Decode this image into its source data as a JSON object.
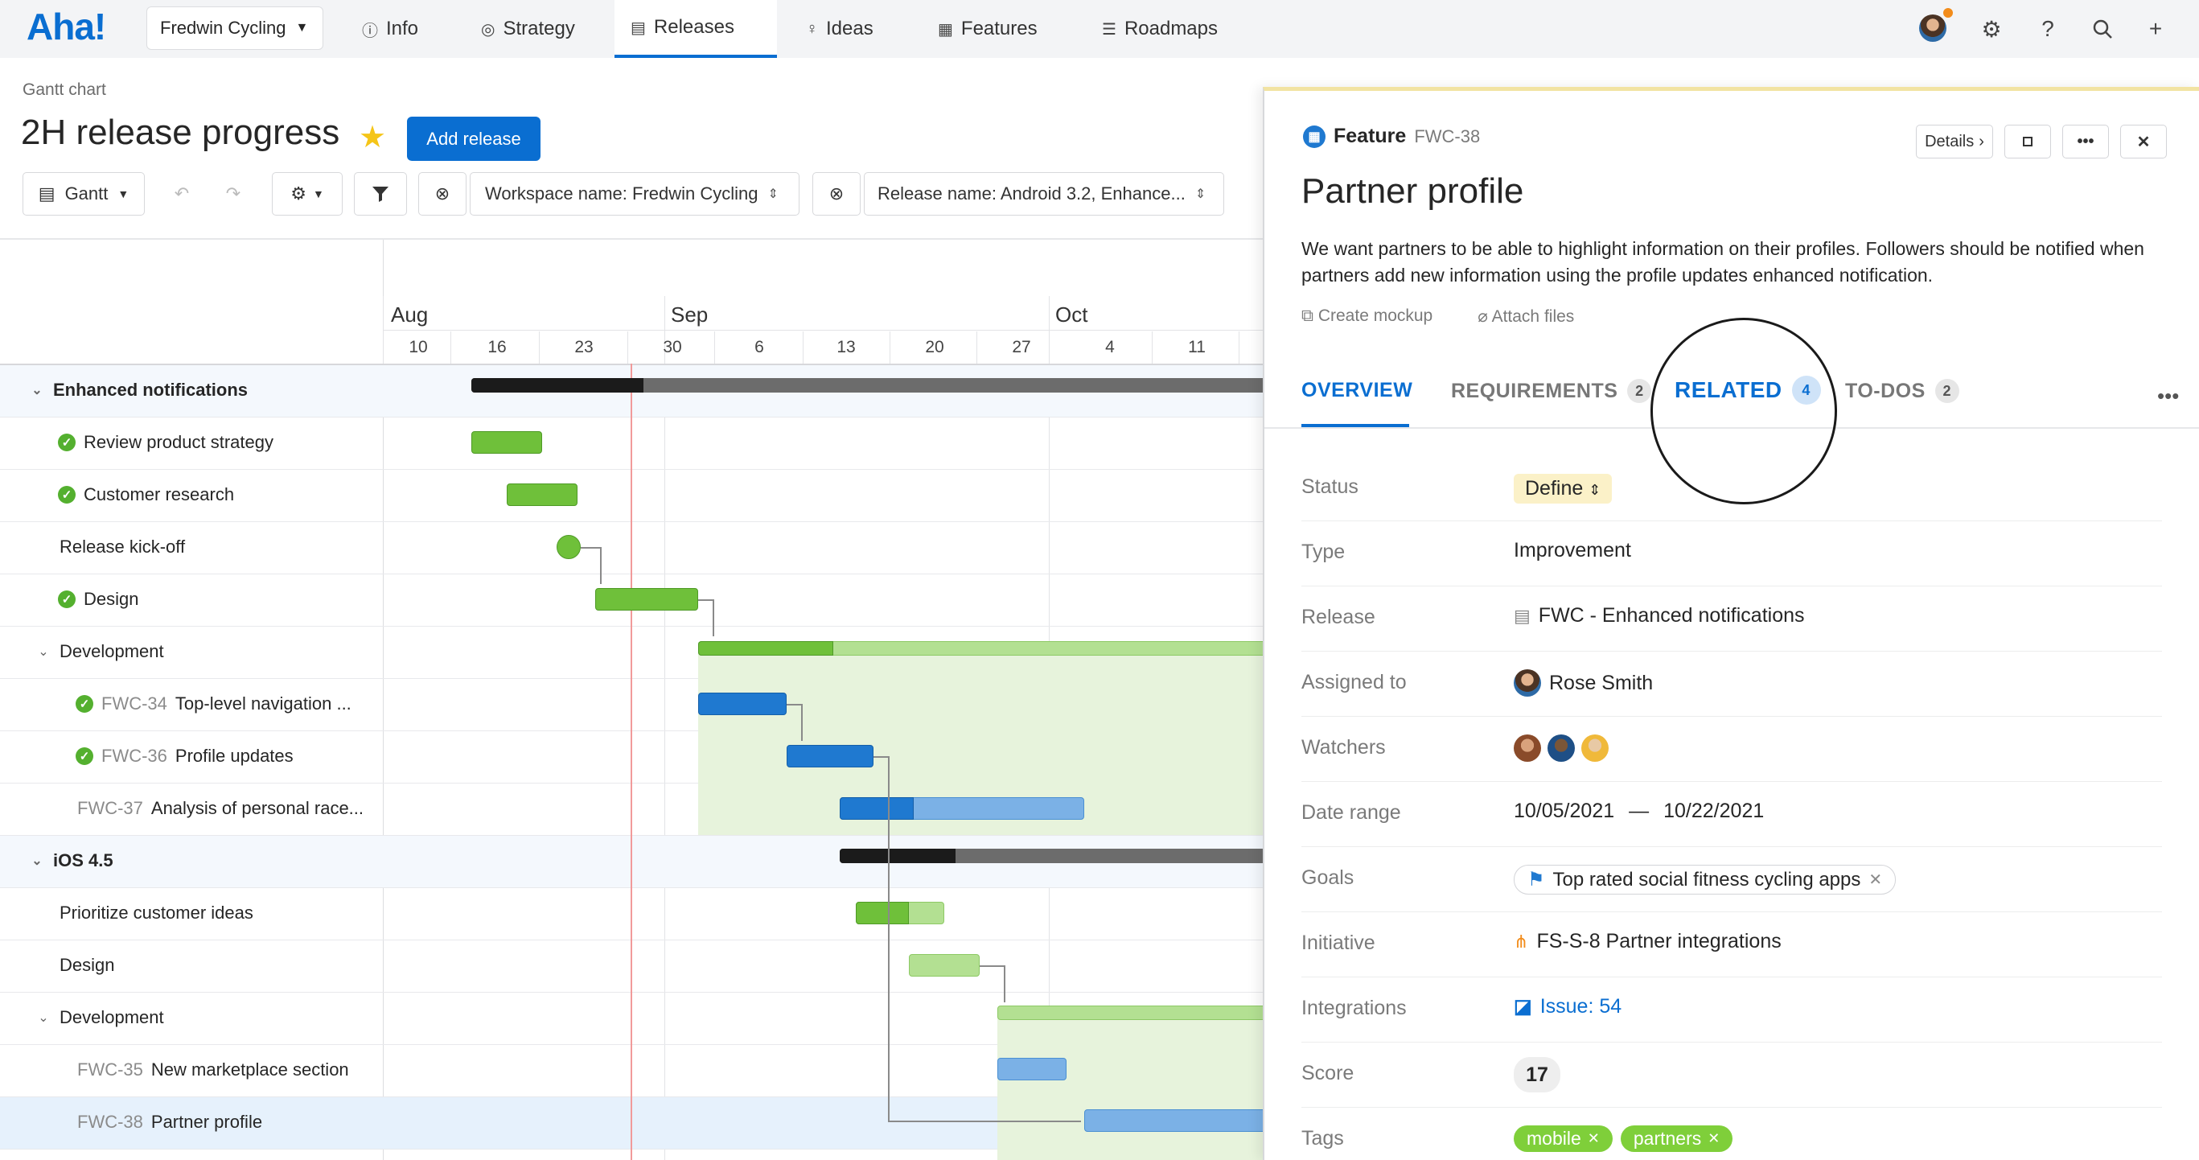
{
  "nav": {
    "logo": "Aha!",
    "workspace": "Fredwin Cycling",
    "items": [
      {
        "label": "Info",
        "icon": "info-icon"
      },
      {
        "label": "Strategy",
        "icon": "target-icon"
      },
      {
        "label": "Releases",
        "icon": "calendar-icon",
        "active": true
      },
      {
        "label": "Ideas",
        "icon": "lightbulb-icon"
      },
      {
        "label": "Features",
        "icon": "grid-icon"
      },
      {
        "label": "Roadmaps",
        "icon": "roadmap-icon"
      }
    ],
    "right_icons": [
      "avatar",
      "gear-icon",
      "help-icon",
      "search-icon",
      "plus-icon"
    ]
  },
  "header": {
    "breadcrumb": "Gantt chart",
    "title": "2H release progress",
    "add_release": "Add release"
  },
  "toolbar": {
    "view": "Gantt",
    "filter_workspace": "Workspace name: Fredwin Cycling",
    "filter_release": "Release name: Android 3.2, Enhance..."
  },
  "gantt": {
    "months": [
      "Aug",
      "Sep",
      "Oct"
    ],
    "days": [
      "10",
      "16",
      "23",
      "30",
      "6",
      "13",
      "20",
      "27",
      "4",
      "11"
    ],
    "rows": [
      {
        "label": "Enhanced notifications",
        "kind": "release"
      },
      {
        "label": "Review product strategy",
        "kind": "task",
        "done": true
      },
      {
        "label": "Customer research",
        "kind": "task",
        "done": true
      },
      {
        "label": "Release kick-off",
        "kind": "milestone"
      },
      {
        "label": "Design",
        "kind": "task",
        "done": true
      },
      {
        "label": "Development",
        "kind": "phase"
      },
      {
        "id": "FWC-34",
        "label": "Top-level navigation ...",
        "kind": "feature",
        "done": true
      },
      {
        "id": "FWC-36",
        "label": "Profile updates",
        "kind": "feature",
        "done": true
      },
      {
        "id": "FWC-37",
        "label": "Analysis of personal race...",
        "kind": "feature"
      },
      {
        "label": "iOS 4.5",
        "kind": "release"
      },
      {
        "label": "Prioritize customer ideas",
        "kind": "task"
      },
      {
        "label": "Design",
        "kind": "task"
      },
      {
        "label": "Development",
        "kind": "phase"
      },
      {
        "id": "FWC-35",
        "label": "New marketplace section",
        "kind": "feature"
      },
      {
        "id": "FWC-38",
        "label": "Partner profile",
        "kind": "feature",
        "selected": true
      }
    ]
  },
  "panel": {
    "type": "Feature",
    "id": "FWC-38",
    "details_btn": "Details",
    "title": "Partner profile",
    "description": "We want partners to be able to highlight information on their profiles. Followers should be notified when partners add new information using the profile updates enhanced notification.",
    "create_mockup": "Create mockup",
    "attach_files": "Attach files",
    "tabs": [
      {
        "label": "OVERVIEW",
        "active": true
      },
      {
        "label": "REQUIREMENTS",
        "count": "2"
      },
      {
        "label": "RELATED",
        "count": "4"
      },
      {
        "label": "TO-DOS",
        "count": "2"
      }
    ],
    "fields": {
      "status_label": "Status",
      "status": "Define",
      "type_label": "Type",
      "type": "Improvement",
      "release_label": "Release",
      "release": "FWC - Enhanced notifications",
      "assigned_label": "Assigned to",
      "assigned": "Rose Smith",
      "watchers_label": "Watchers",
      "date_label": "Date range",
      "date_start": "10/05/2021",
      "date_sep": "—",
      "date_end": "10/22/2021",
      "goals_label": "Goals",
      "goal": "Top rated social fitness cycling apps",
      "initiative_label": "Initiative",
      "initiative": "FS-S-8 Partner integrations",
      "integrations_label": "Integrations",
      "integration": "Issue: 54",
      "score_label": "Score",
      "score": "17",
      "tags_label": "Tags",
      "tags": [
        "mobile",
        "partners"
      ]
    }
  },
  "colors": {
    "accent": "#0a6ed1",
    "done": "#54b02f",
    "feature_bar": "#1f79d0",
    "today": "#f19a9a"
  }
}
